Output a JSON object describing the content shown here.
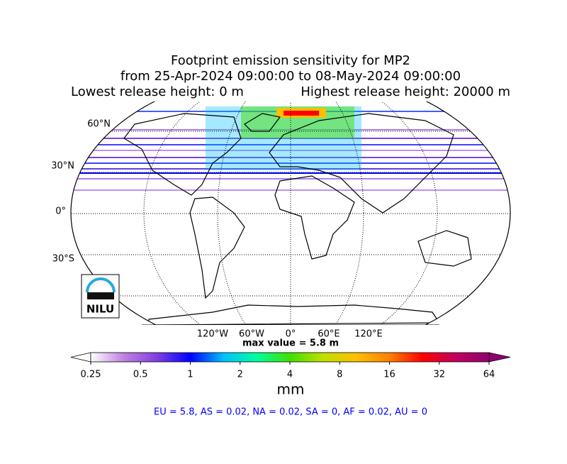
{
  "title": {
    "line1": "Footprint emission sensitivity for MP2",
    "line2": "from 25-Apr-2024 09:00:00 to 08-May-2024 09:00:00",
    "lowest": "Lowest release height: 0 m",
    "highest": "Highest release height: 20000 m"
  },
  "map": {
    "lat_labels": [
      "60°N",
      "30°N",
      "0°",
      "30°S"
    ],
    "lon_labels": [
      "120°W",
      "60°W",
      "0°",
      "60°E",
      "120°E"
    ],
    "max_value": "max value = 5.8 m",
    "logo": "NILU"
  },
  "colorbar": {
    "ticks": [
      0.25,
      0.5,
      1,
      2,
      4,
      8,
      16,
      32,
      64
    ],
    "lim": [
      0.25,
      64
    ],
    "log": true,
    "colors": [
      "#ffffff",
      "#c080e0",
      "#8040e0",
      "#0000ff",
      "#00c0ff",
      "#00ffa0",
      "#40e000",
      "#c0e000",
      "#ffc000",
      "#ff8000",
      "#ff0000",
      "#c00060",
      "#900070"
    ],
    "label": "mm"
  },
  "footer": "EU = 5.8,  AS = 0.02,  NA = 0.02,  SA = 0,  AF = 0.02,  AU = 0"
}
